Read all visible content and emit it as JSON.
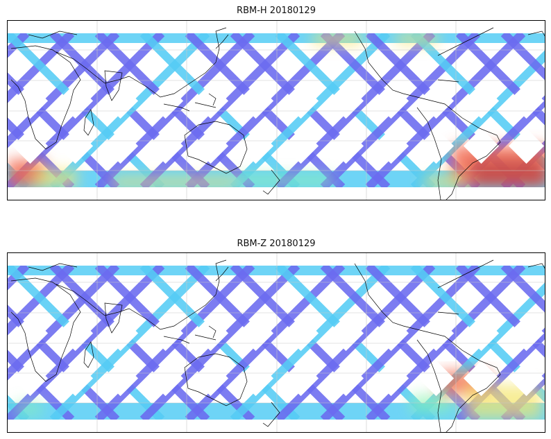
{
  "figure": {
    "panels": [
      {
        "title": "RBM-H 20180129",
        "variant": "h",
        "hotspots": [
          {
            "region": "south-atlantic-south-america",
            "color": "#c84d4d"
          },
          {
            "region": "south-indian-ocean-west",
            "color": "#ff6d4d"
          },
          {
            "region": "north-pacific",
            "color": "#f2f26d"
          }
        ]
      },
      {
        "title": "RBM-Z 20180129",
        "variant": "z",
        "hotspots": [
          {
            "region": "south-atlantic-south-america",
            "color": "#f07a5a"
          }
        ]
      }
    ],
    "colors": {
      "low": "#6b6bf0",
      "mid": "#55ccf5",
      "midhigh": "#8cf2b0",
      "high": "#f5e66b",
      "veryhigh": "#f26a4f",
      "extreme": "#c84d4d",
      "coastline": "#000000",
      "grid": "#c8c8c8"
    }
  }
}
